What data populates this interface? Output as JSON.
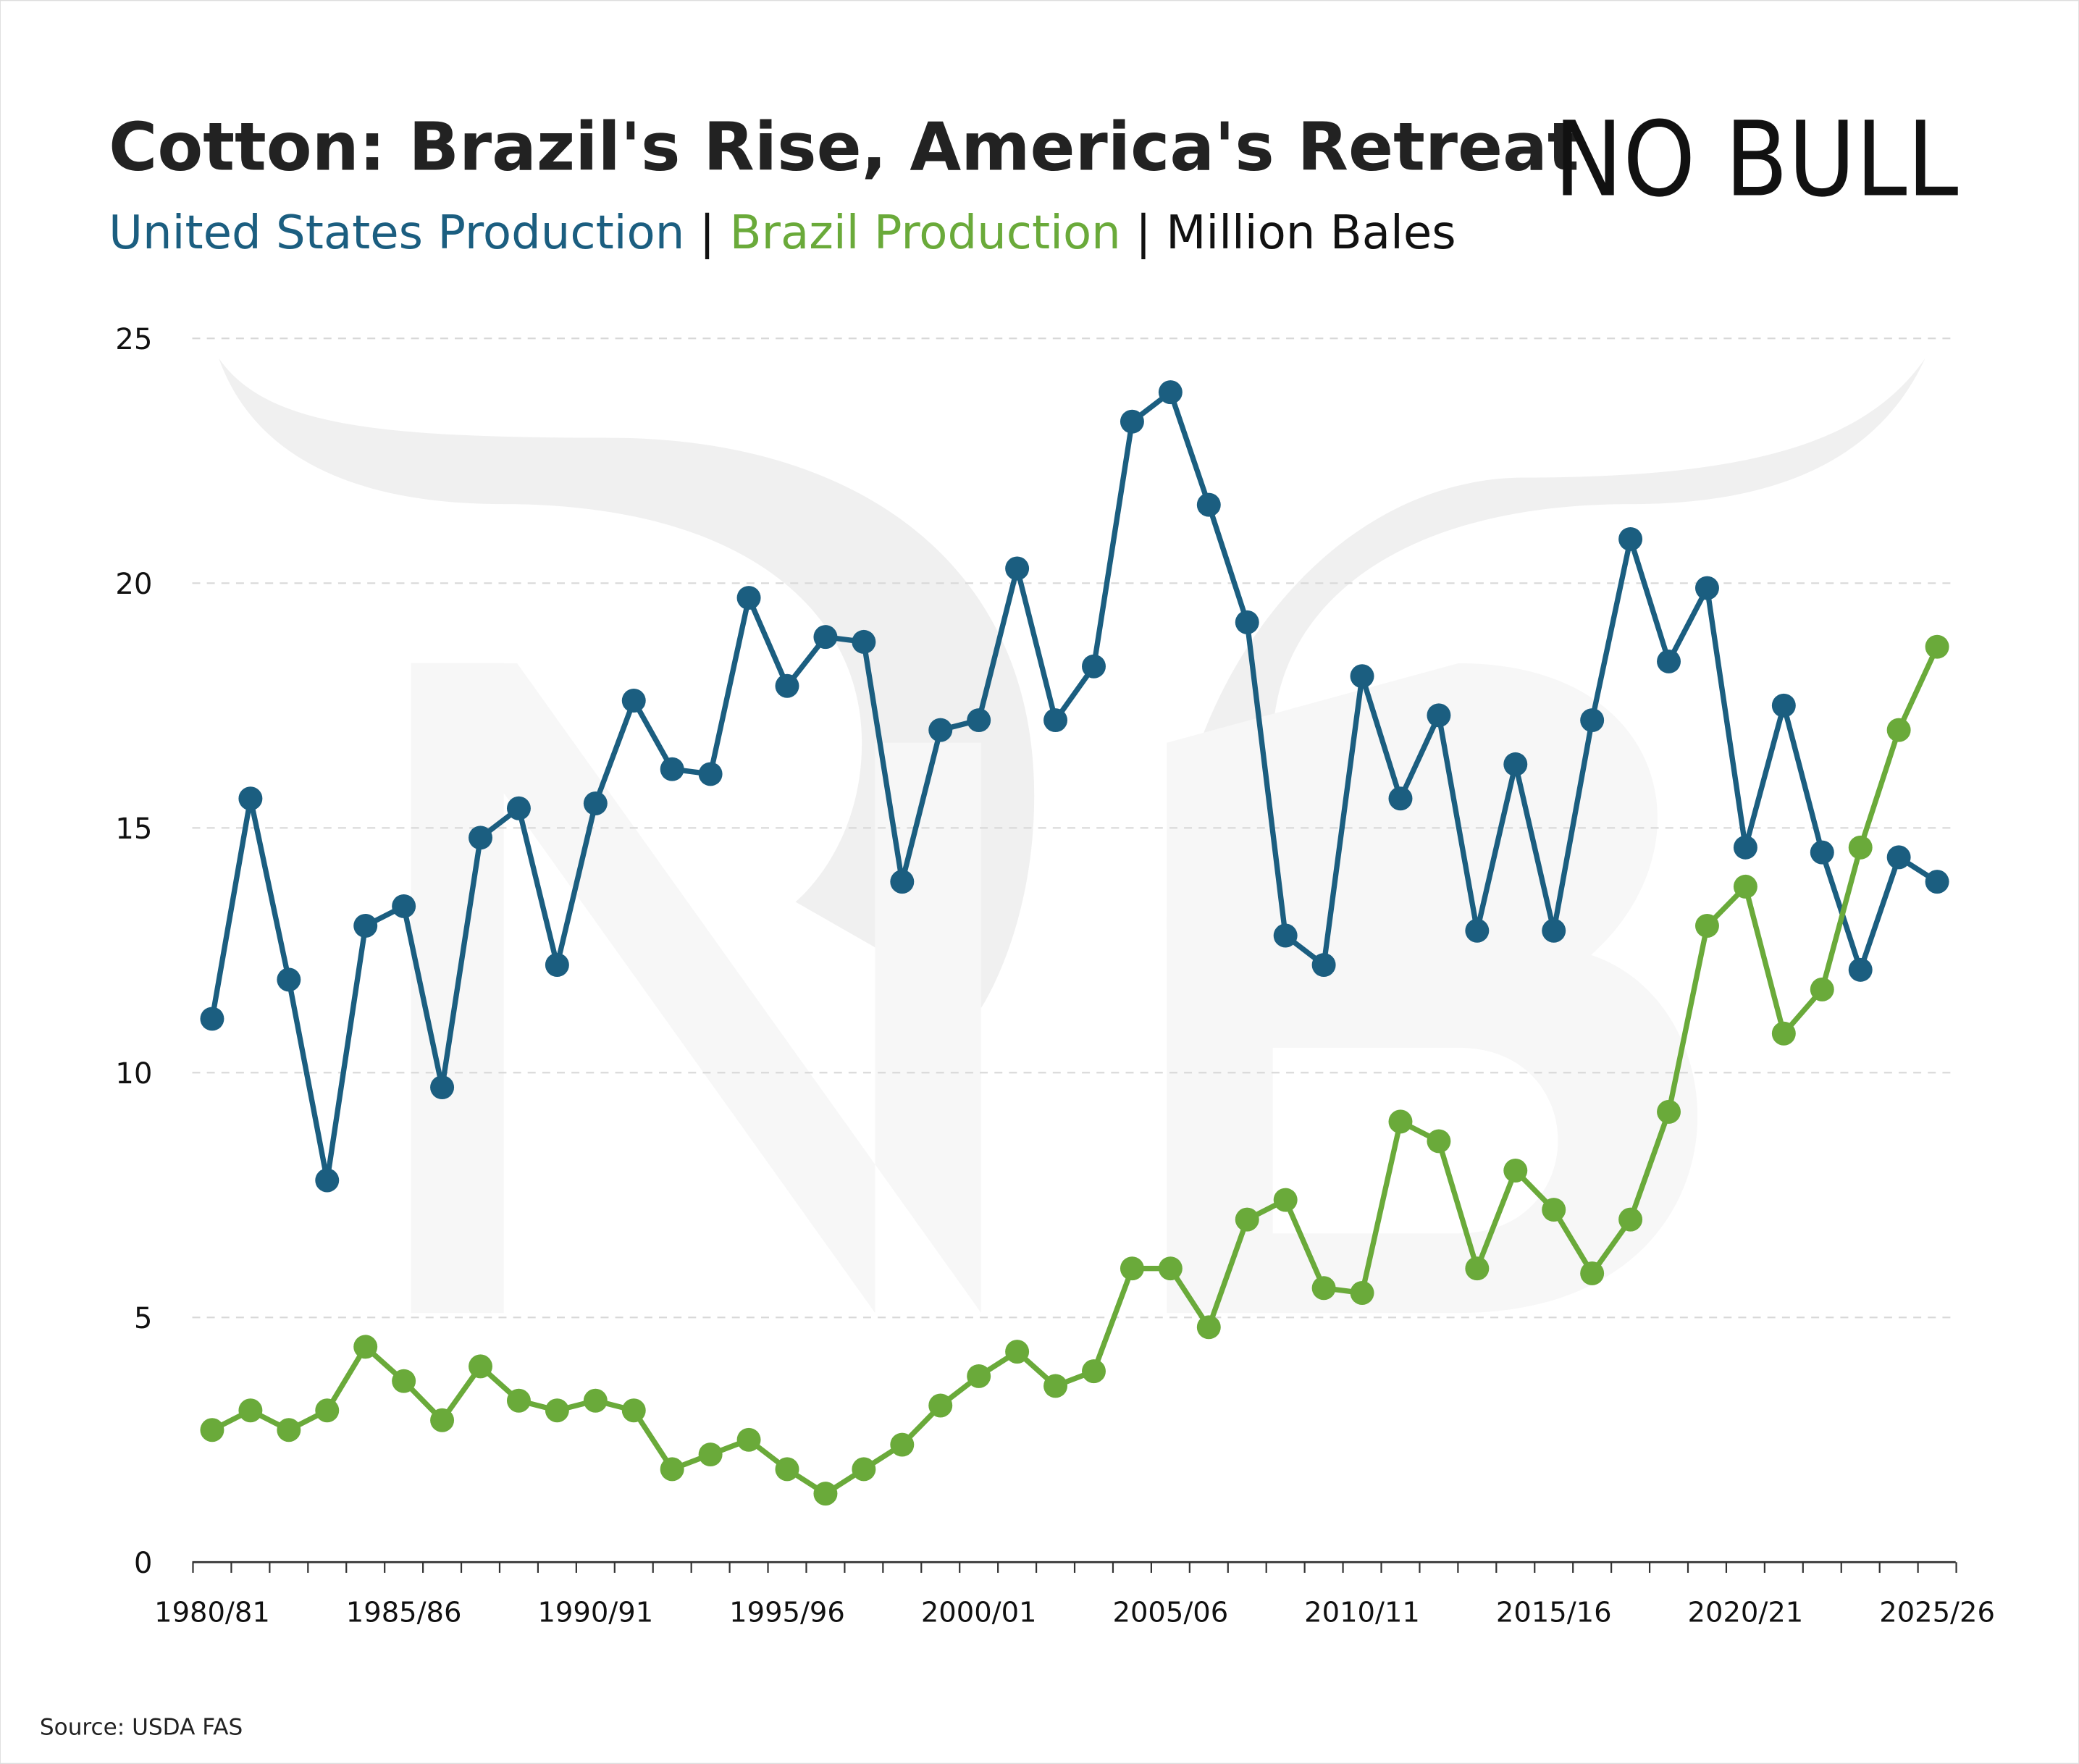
{
  "chart_data": {
    "type": "line",
    "title": "Cotton: Brazil's Rise, America's Retreat",
    "subtitle_parts": [
      {
        "text": "United States Production",
        "color": "#1b5e80"
      },
      {
        "text": " | ",
        "color": "#111111"
      },
      {
        "text": "Brazil Production",
        "color": "#6aaa3a"
      },
      {
        "text": " | ",
        "color": "#111111"
      },
      {
        "text": "Million Bales",
        "color": "#111111"
      }
    ],
    "logo_text": "NO BULL",
    "source": "Source: USDA FAS",
    "ylabel": "Million Bales",
    "ylim": [
      0,
      25
    ],
    "yticks": [
      0,
      5,
      10,
      15,
      20,
      25
    ],
    "grid": true,
    "x_start_year": 1980,
    "xtick_labels": [
      "1980/81",
      "1985/86",
      "1990/91",
      "1995/96",
      "2000/01",
      "2005/06",
      "2010/11",
      "2015/16",
      "2020/21",
      "2025/26"
    ],
    "xtick_years": [
      1980,
      1985,
      1990,
      1995,
      2000,
      2005,
      2010,
      2015,
      2020,
      2025
    ],
    "series": [
      {
        "name": "United States Production",
        "color": "#1b5e80",
        "values": [
          11.1,
          15.6,
          11.9,
          7.8,
          13.0,
          13.4,
          9.7,
          14.8,
          15.4,
          12.2,
          15.5,
          17.6,
          16.2,
          16.1,
          19.7,
          17.9,
          18.9,
          18.8,
          13.9,
          17.0,
          17.2,
          20.3,
          17.2,
          18.3,
          23.3,
          23.9,
          21.6,
          19.2,
          12.8,
          12.2,
          18.1,
          15.6,
          17.3,
          12.9,
          16.3,
          12.9,
          17.2,
          20.9,
          18.4,
          19.9,
          14.6,
          17.5,
          14.5,
          12.1,
          14.4,
          13.9
        ]
      },
      {
        "name": "Brazil Production",
        "color": "#6aaa3a",
        "values": [
          2.7,
          3.1,
          2.7,
          3.1,
          4.4,
          3.7,
          2.9,
          4.0,
          3.3,
          3.1,
          3.3,
          3.1,
          1.9,
          2.2,
          2.5,
          1.9,
          1.4,
          1.9,
          2.4,
          3.2,
          3.8,
          4.3,
          3.6,
          3.9,
          6.0,
          6.0,
          4.8,
          7.0,
          7.4,
          5.6,
          5.5,
          9.0,
          8.6,
          6.0,
          8.0,
          7.2,
          5.9,
          7.0,
          9.2,
          13.0,
          13.8,
          10.8,
          11.7,
          14.6,
          17.0,
          18.7
        ]
      }
    ]
  }
}
